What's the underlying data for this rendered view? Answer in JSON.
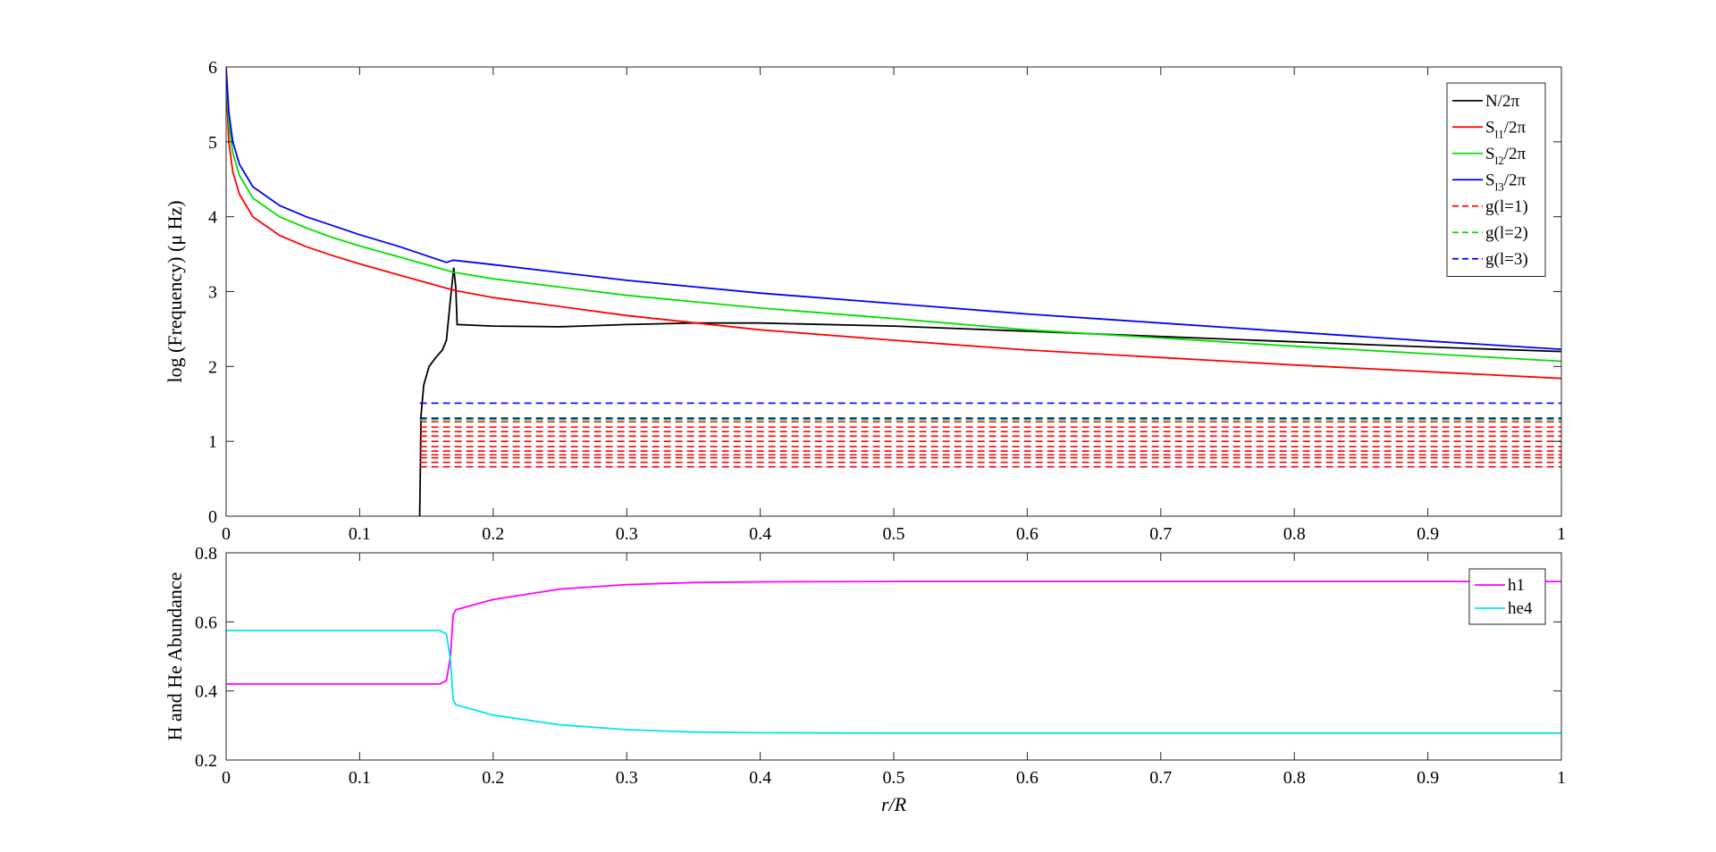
{
  "chart_data": [
    {
      "type": "line",
      "xlabel": "",
      "ylabel": "log (Frequency) (μ Hz)",
      "xlim": [
        0,
        1
      ],
      "ylim": [
        0,
        6
      ],
      "xticks": [
        "0",
        "0.1",
        "0.2",
        "0.3",
        "0.4",
        "0.5",
        "0.6",
        "0.7",
        "0.8",
        "0.9",
        "1"
      ],
      "yticks": [
        "0",
        "1",
        "2",
        "3",
        "4",
        "5",
        "6"
      ],
      "grid": false,
      "legend_position": "top-right",
      "series": [
        {
          "name": "N/2π",
          "legend_main": "N/2π",
          "legend_sub": "",
          "legend_tail": "",
          "color": "#000000",
          "style": "solid",
          "points": [
            [
              0.145,
              0
            ],
            [
              0.146,
              1.35
            ],
            [
              0.148,
              1.75
            ],
            [
              0.152,
              2.0
            ],
            [
              0.157,
              2.12
            ],
            [
              0.162,
              2.22
            ],
            [
              0.165,
              2.35
            ],
            [
              0.168,
              2.9
            ],
            [
              0.1705,
              3.32
            ],
            [
              0.172,
              3.05
            ],
            [
              0.173,
              2.56
            ],
            [
              0.2,
              2.54
            ],
            [
              0.25,
              2.53
            ],
            [
              0.3,
              2.56
            ],
            [
              0.35,
              2.58
            ],
            [
              0.4,
              2.58
            ],
            [
              0.5,
              2.54
            ],
            [
              0.6,
              2.47
            ],
            [
              0.7,
              2.4
            ],
            [
              0.8,
              2.33
            ],
            [
              0.9,
              2.26
            ],
            [
              1.0,
              2.2
            ]
          ]
        },
        {
          "name": "S_l1/2π",
          "legend_main": "S",
          "legend_sub": "l1",
          "legend_tail": "/2π",
          "color": "#ff0000",
          "style": "solid",
          "points": [
            [
              0.0,
              5.8
            ],
            [
              0.002,
              5.0
            ],
            [
              0.005,
              4.6
            ],
            [
              0.01,
              4.3
            ],
            [
              0.02,
              4.0
            ],
            [
              0.04,
              3.75
            ],
            [
              0.06,
              3.6
            ],
            [
              0.08,
              3.48
            ],
            [
              0.1,
              3.37
            ],
            [
              0.13,
              3.22
            ],
            [
              0.17,
              3.02
            ],
            [
              0.2,
              2.92
            ],
            [
              0.3,
              2.68
            ],
            [
              0.4,
              2.49
            ],
            [
              0.5,
              2.35
            ],
            [
              0.6,
              2.22
            ],
            [
              0.7,
              2.12
            ],
            [
              0.8,
              2.02
            ],
            [
              0.9,
              1.93
            ],
            [
              1.0,
              1.84
            ]
          ]
        },
        {
          "name": "S_l2/2π",
          "legend_main": "S",
          "legend_sub": "l2",
          "legend_tail": "/2π",
          "color": "#00e000",
          "style": "solid",
          "points": [
            [
              0.0,
              5.9
            ],
            [
              0.002,
              5.25
            ],
            [
              0.005,
              4.85
            ],
            [
              0.01,
              4.55
            ],
            [
              0.02,
              4.25
            ],
            [
              0.04,
              4.0
            ],
            [
              0.06,
              3.85
            ],
            [
              0.08,
              3.72
            ],
            [
              0.1,
              3.61
            ],
            [
              0.13,
              3.46
            ],
            [
              0.17,
              3.26
            ],
            [
              0.2,
              3.17
            ],
            [
              0.3,
              2.95
            ],
            [
              0.4,
              2.78
            ],
            [
              0.5,
              2.64
            ],
            [
              0.6,
              2.49
            ],
            [
              0.7,
              2.38
            ],
            [
              0.8,
              2.27
            ],
            [
              0.9,
              2.17
            ],
            [
              1.0,
              2.07
            ]
          ]
        },
        {
          "name": "S_l3/2π",
          "legend_main": "S",
          "legend_sub": "l3",
          "legend_tail": "/2π",
          "color": "#0000ff",
          "style": "solid",
          "points": [
            [
              0.0,
              6.0
            ],
            [
              0.002,
              5.4
            ],
            [
              0.005,
              5.0
            ],
            [
              0.01,
              4.7
            ],
            [
              0.02,
              4.4
            ],
            [
              0.04,
              4.15
            ],
            [
              0.06,
              4.0
            ],
            [
              0.08,
              3.88
            ],
            [
              0.1,
              3.76
            ],
            [
              0.13,
              3.6
            ],
            [
              0.165,
              3.39
            ],
            [
              0.17,
              3.42
            ],
            [
              0.2,
              3.36
            ],
            [
              0.3,
              3.15
            ],
            [
              0.4,
              2.98
            ],
            [
              0.5,
              2.84
            ],
            [
              0.6,
              2.7
            ],
            [
              0.7,
              2.58
            ],
            [
              0.8,
              2.46
            ],
            [
              0.9,
              2.34
            ],
            [
              1.0,
              2.23
            ]
          ]
        },
        {
          "name": "g(l=1)",
          "legend_main": "g(l=1)",
          "legend_sub": "",
          "legend_tail": "",
          "color": "#ff0000",
          "style": "dashed",
          "xrange": [
            0.145,
            1.0
          ],
          "levels": [
            0.66,
            0.72,
            0.78,
            0.82,
            0.87,
            0.93,
            1.0,
            1.07,
            1.13,
            1.19,
            1.26
          ]
        },
        {
          "name": "g(l=2)",
          "legend_main": "g(l=2)",
          "legend_sub": "",
          "legend_tail": "",
          "color": "#00e000",
          "style": "dashed",
          "xrange": [
            0.145,
            1.0
          ],
          "levels": [
            1.29
          ]
        },
        {
          "name": "g(l=3)",
          "legend_main": "g(l=3)",
          "legend_sub": "",
          "legend_tail": "",
          "color": "#0000ff",
          "style": "dashed",
          "xrange": [
            0.145,
            1.0
          ],
          "levels": [
            1.31,
            1.51
          ]
        }
      ]
    },
    {
      "type": "line",
      "xlabel": "r/R",
      "ylabel": "H and He Abundance",
      "xlim": [
        0,
        1
      ],
      "ylim": [
        0.2,
        0.8
      ],
      "xticks": [
        "0",
        "0.1",
        "0.2",
        "0.3",
        "0.4",
        "0.5",
        "0.6",
        "0.7",
        "0.8",
        "0.9",
        "1"
      ],
      "yticks": [
        "0.2",
        "0.4",
        "0.6",
        "0.8"
      ],
      "grid": false,
      "legend_position": "top-right",
      "series": [
        {
          "name": "h1",
          "legend_main": "h1",
          "legend_sub": "",
          "legend_tail": "",
          "color": "#ff00ff",
          "style": "solid",
          "points": [
            [
              0.0,
              0.42
            ],
            [
              0.16,
              0.42
            ],
            [
              0.165,
              0.43
            ],
            [
              0.168,
              0.5
            ],
            [
              0.17,
              0.62
            ],
            [
              0.172,
              0.635
            ],
            [
              0.2,
              0.665
            ],
            [
              0.25,
              0.695
            ],
            [
              0.3,
              0.708
            ],
            [
              0.35,
              0.714
            ],
            [
              0.4,
              0.716
            ],
            [
              0.5,
              0.717
            ],
            [
              0.7,
              0.717
            ],
            [
              1.0,
              0.717
            ]
          ]
        },
        {
          "name": "he4",
          "legend_main": "he4",
          "legend_sub": "",
          "legend_tail": "",
          "color": "#00e5ee",
          "style": "solid",
          "points": [
            [
              0.0,
              0.575
            ],
            [
              0.16,
              0.575
            ],
            [
              0.165,
              0.565
            ],
            [
              0.168,
              0.49
            ],
            [
              0.17,
              0.375
            ],
            [
              0.172,
              0.36
            ],
            [
              0.2,
              0.33
            ],
            [
              0.25,
              0.302
            ],
            [
              0.3,
              0.288
            ],
            [
              0.35,
              0.281
            ],
            [
              0.4,
              0.279
            ],
            [
              0.5,
              0.278
            ],
            [
              0.7,
              0.278
            ],
            [
              1.0,
              0.278
            ]
          ]
        }
      ]
    }
  ]
}
